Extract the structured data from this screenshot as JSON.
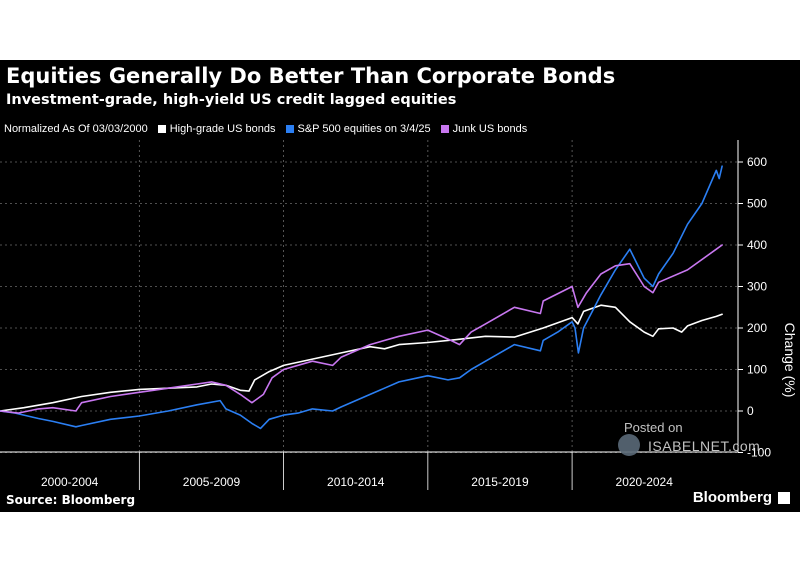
{
  "chart_data": {
    "type": "line",
    "title": "Equities Generally Do Better Than Corporate Bonds",
    "subtitle": "Investment-grade, high-yield US credit lagged equities",
    "legend_note": "Normalized As Of 03/03/2000",
    "ylabel": "Change (%)",
    "ylim": [
      -100,
      650
    ],
    "yticks": [
      "600",
      "500",
      "400",
      "300",
      "200",
      "100",
      "0",
      "-100"
    ],
    "xlim": [
      2000.17,
      2025.3
    ],
    "xticks": [
      "2000-2004",
      "2005-2009",
      "2010-2014",
      "2015-2019",
      "2020-2024"
    ],
    "grid": true,
    "legend_position": "top-left",
    "series": [
      {
        "name": "High-grade US bonds",
        "color": "#ffffff",
        "x": [
          2000.17,
          2001.0,
          2002.0,
          2003.0,
          2004.0,
          2005.0,
          2006.0,
          2007.0,
          2007.5,
          2008.0,
          2008.5,
          2008.8,
          2009.0,
          2009.5,
          2010.0,
          2011.0,
          2012.0,
          2013.0,
          2013.5,
          2014.0,
          2015.0,
          2016.0,
          2017.0,
          2018.0,
          2019.0,
          2020.0,
          2020.2,
          2020.4,
          2021.0,
          2021.5,
          2022.0,
          2022.5,
          2022.8,
          2023.0,
          2023.5,
          2023.8,
          2024.0,
          2024.5,
          2025.0,
          2025.2
        ],
        "values": [
          0,
          8,
          20,
          35,
          45,
          52,
          55,
          58,
          65,
          62,
          50,
          48,
          75,
          95,
          110,
          125,
          140,
          155,
          150,
          160,
          165,
          172,
          180,
          178,
          200,
          225,
          210,
          240,
          255,
          250,
          215,
          190,
          180,
          198,
          200,
          190,
          205,
          218,
          228,
          233
        ]
      },
      {
        "name": "S&P 500 equities on 3/4/25",
        "color": "#2b7ff3",
        "x": [
          2000.17,
          2000.7,
          2001.5,
          2002.0,
          2002.8,
          2003.0,
          2004.0,
          2005.0,
          2006.0,
          2007.0,
          2007.8,
          2008.0,
          2008.5,
          2008.9,
          2009.2,
          2009.5,
          2010.0,
          2010.5,
          2011.0,
          2011.7,
          2012.0,
          2013.0,
          2014.0,
          2015.0,
          2015.7,
          2016.1,
          2016.5,
          2017.0,
          2018.0,
          2018.9,
          2019.0,
          2019.5,
          2020.0,
          2020.1,
          2020.22,
          2020.4,
          2020.7,
          2021.0,
          2021.5,
          2022.0,
          2022.5,
          2022.8,
          2023.0,
          2023.5,
          2024.0,
          2024.5,
          2025.0,
          2025.1,
          2025.2
        ],
        "values": [
          0,
          -5,
          -18,
          -25,
          -38,
          -35,
          -20,
          -12,
          0,
          15,
          25,
          5,
          -10,
          -30,
          -42,
          -20,
          -10,
          -5,
          5,
          0,
          10,
          40,
          70,
          85,
          75,
          80,
          100,
          120,
          160,
          145,
          170,
          190,
          215,
          200,
          140,
          200,
          240,
          280,
          340,
          390,
          320,
          300,
          330,
          380,
          450,
          500,
          580,
          560,
          590
        ]
      },
      {
        "name": "Junk US bonds",
        "color": "#c877f0",
        "x": [
          2000.17,
          2000.8,
          2001.5,
          2002.0,
          2002.8,
          2003.0,
          2004.0,
          2005.0,
          2006.0,
          2007.0,
          2007.5,
          2008.0,
          2008.5,
          2008.9,
          2009.3,
          2009.6,
          2010.0,
          2011.0,
          2011.7,
          2012.0,
          2013.0,
          2014.0,
          2015.0,
          2015.8,
          2016.1,
          2016.5,
          2017.0,
          2018.0,
          2018.9,
          2019.0,
          2020.0,
          2020.2,
          2020.5,
          2021.0,
          2021.5,
          2022.0,
          2022.5,
          2022.8,
          2023.0,
          2024.0,
          2025.0,
          2025.2
        ],
        "values": [
          0,
          -5,
          5,
          8,
          0,
          20,
          35,
          45,
          55,
          65,
          70,
          62,
          40,
          20,
          40,
          80,
          100,
          120,
          110,
          130,
          160,
          180,
          195,
          170,
          160,
          190,
          210,
          250,
          235,
          265,
          300,
          250,
          285,
          330,
          350,
          355,
          300,
          285,
          310,
          340,
          390,
          400
        ]
      }
    ]
  },
  "footer": {
    "source": "Source: Bloomberg",
    "brand": "Bloomberg"
  },
  "watermark": {
    "line1": "Posted on",
    "line2": "ISABELNET.com"
  }
}
